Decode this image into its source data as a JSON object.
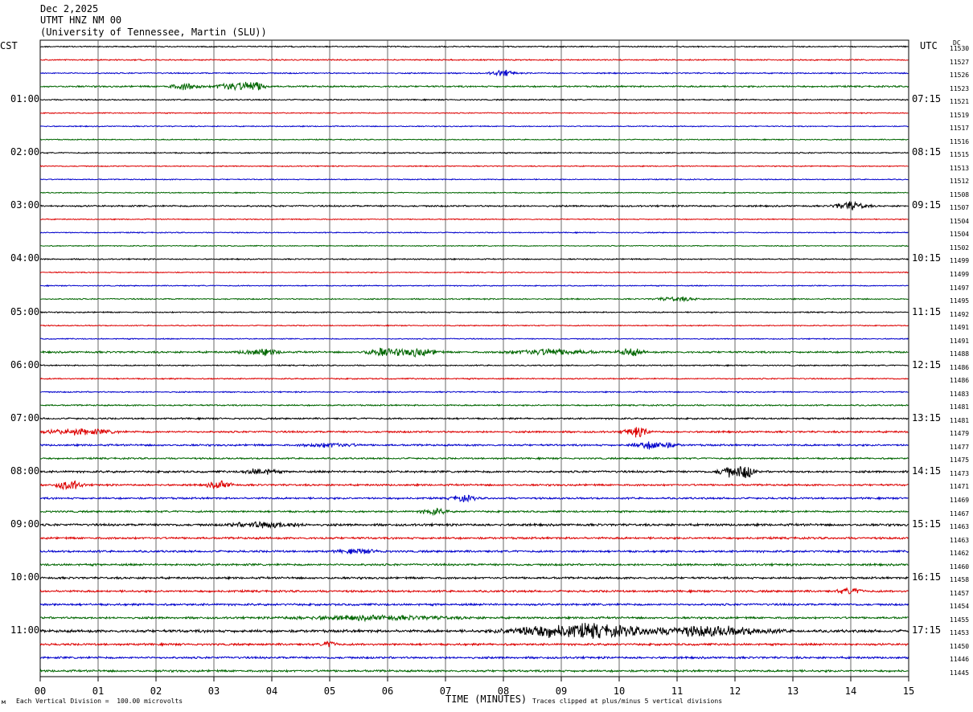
{
  "header": {
    "date": "Dec 2,2025",
    "station": "UTMT HNZ NM 00",
    "institution": "(University of Tennessee, Martin (SLU))"
  },
  "left_tz": "CST",
  "right_tz": "UTC",
  "dc_header": "DC",
  "footer": {
    "scale_note": "Each Vertical Division =  100.00 microvolts",
    "clip_note": "Traces clipped at plus/minus 5 vertical divisions",
    "mark": "м"
  },
  "colors": {
    "trace_cycle": [
      "#000000",
      "#dd0000",
      "#0000cc",
      "#006600"
    ],
    "grid": "#444444"
  },
  "chart_data": {
    "type": "line",
    "title": "UTMT HNZ NM 00",
    "xlabel": "TIME (MINUTES)",
    "xlim": [
      0,
      15
    ],
    "x_ticks": [
      "00",
      "01",
      "02",
      "03",
      "04",
      "05",
      "06",
      "07",
      "08",
      "09",
      "10",
      "11",
      "12",
      "13",
      "14",
      "15"
    ],
    "row_count": 48,
    "rows_per_hour": 4,
    "minutes_per_row": 15,
    "left_hour_labels": [
      {
        "row": 4,
        "label": "01:00"
      },
      {
        "row": 8,
        "label": "02:00"
      },
      {
        "row": 12,
        "label": "03:00"
      },
      {
        "row": 16,
        "label": "04:00"
      },
      {
        "row": 20,
        "label": "05:00"
      },
      {
        "row": 24,
        "label": "06:00"
      },
      {
        "row": 28,
        "label": "07:00"
      },
      {
        "row": 32,
        "label": "08:00"
      },
      {
        "row": 36,
        "label": "09:00"
      },
      {
        "row": 40,
        "label": "10:00"
      },
      {
        "row": 44,
        "label": "11:00"
      }
    ],
    "right_hour_labels": [
      {
        "row": 4,
        "label": "07:15"
      },
      {
        "row": 8,
        "label": "08:15"
      },
      {
        "row": 12,
        "label": "09:15"
      },
      {
        "row": 16,
        "label": "10:15"
      },
      {
        "row": 20,
        "label": "11:15"
      },
      {
        "row": 24,
        "label": "12:15"
      },
      {
        "row": 28,
        "label": "13:15"
      },
      {
        "row": 32,
        "label": "14:15"
      },
      {
        "row": 36,
        "label": "15:15"
      },
      {
        "row": 40,
        "label": "16:15"
      },
      {
        "row": 44,
        "label": "17:15"
      }
    ],
    "dc_offsets": [
      "11530",
      "11527",
      "11526",
      "11523",
      "11521",
      "11519",
      "11517",
      "11516",
      "11515",
      "11513",
      "11512",
      "11508",
      "11507",
      "11504",
      "11504",
      "11502",
      "11499",
      "11499",
      "11497",
      "11495",
      "11492",
      "11491",
      "11491",
      "11488",
      "11486",
      "11486",
      "11483",
      "11481",
      "11481",
      "11479",
      "11477",
      "11475",
      "11473",
      "11471",
      "11469",
      "11467",
      "11463",
      "11463",
      "11462",
      "11460",
      "11458",
      "11457",
      "11454",
      "11455",
      "11453",
      "11450",
      "11446",
      "11445"
    ],
    "noise_level": [
      0.6,
      0.6,
      0.6,
      0.8,
      0.6,
      0.5,
      0.5,
      0.5,
      0.6,
      0.5,
      0.5,
      0.5,
      0.8,
      0.5,
      0.5,
      0.5,
      0.6,
      0.5,
      0.5,
      0.6,
      0.6,
      0.5,
      0.5,
      0.9,
      0.6,
      0.6,
      0.6,
      0.7,
      0.8,
      0.9,
      0.9,
      0.8,
      1.0,
      0.9,
      0.9,
      0.9,
      1.1,
      1.0,
      1.0,
      1.0,
      1.0,
      1.0,
      1.0,
      1.0,
      1.3,
      1.0,
      1.0,
      1.0
    ],
    "events": [
      {
        "row": 2,
        "minute": 8.0,
        "amp": 3,
        "dur": 0.3
      },
      {
        "row": 3,
        "minute": 2.5,
        "amp": 3,
        "dur": 0.4
      },
      {
        "row": 3,
        "minute": 3.3,
        "amp": 4,
        "dur": 0.4
      },
      {
        "row": 3,
        "minute": 3.7,
        "amp": 5,
        "dur": 0.3
      },
      {
        "row": 12,
        "minute": 14.0,
        "amp": 4,
        "dur": 0.4
      },
      {
        "row": 19,
        "minute": 11.0,
        "amp": 2,
        "dur": 0.5
      },
      {
        "row": 23,
        "minute": 3.8,
        "amp": 3,
        "dur": 0.5
      },
      {
        "row": 23,
        "minute": 5.9,
        "amp": 4,
        "dur": 0.4
      },
      {
        "row": 23,
        "minute": 6.5,
        "amp": 4,
        "dur": 0.5
      },
      {
        "row": 23,
        "minute": 8.8,
        "amp": 3,
        "dur": 1.0
      },
      {
        "row": 23,
        "minute": 10.2,
        "amp": 4,
        "dur": 0.3
      },
      {
        "row": 29,
        "minute": 0.7,
        "amp": 3,
        "dur": 0.8
      },
      {
        "row": 29,
        "minute": 10.3,
        "amp": 5,
        "dur": 0.3
      },
      {
        "row": 30,
        "minute": 5.0,
        "amp": 2,
        "dur": 0.6
      },
      {
        "row": 30,
        "minute": 10.6,
        "amp": 4,
        "dur": 0.5
      },
      {
        "row": 32,
        "minute": 3.8,
        "amp": 3,
        "dur": 0.4
      },
      {
        "row": 32,
        "minute": 11.9,
        "amp": 5,
        "dur": 0.3
      },
      {
        "row": 32,
        "minute": 12.2,
        "amp": 7,
        "dur": 0.2
      },
      {
        "row": 33,
        "minute": 0.5,
        "amp": 5,
        "dur": 0.3
      },
      {
        "row": 33,
        "minute": 3.1,
        "amp": 4,
        "dur": 0.3
      },
      {
        "row": 34,
        "minute": 7.3,
        "amp": 3,
        "dur": 0.3
      },
      {
        "row": 35,
        "minute": 6.8,
        "amp": 3,
        "dur": 0.3
      },
      {
        "row": 36,
        "minute": 3.9,
        "amp": 3,
        "dur": 0.8
      },
      {
        "row": 38,
        "minute": 5.5,
        "amp": 2,
        "dur": 0.5
      },
      {
        "row": 41,
        "minute": 14.0,
        "amp": 3,
        "dur": 0.3
      },
      {
        "row": 43,
        "minute": 5.8,
        "amp": 2,
        "dur": 2.0
      },
      {
        "row": 44,
        "minute": 9.5,
        "amp": 7,
        "dur": 1.2
      },
      {
        "row": 44,
        "minute": 11.5,
        "amp": 5,
        "dur": 1.5
      },
      {
        "row": 44,
        "minute": 8.5,
        "amp": 4,
        "dur": 0.8
      },
      {
        "row": 45,
        "minute": 5.0,
        "amp": 3,
        "dur": 0.2
      }
    ]
  }
}
